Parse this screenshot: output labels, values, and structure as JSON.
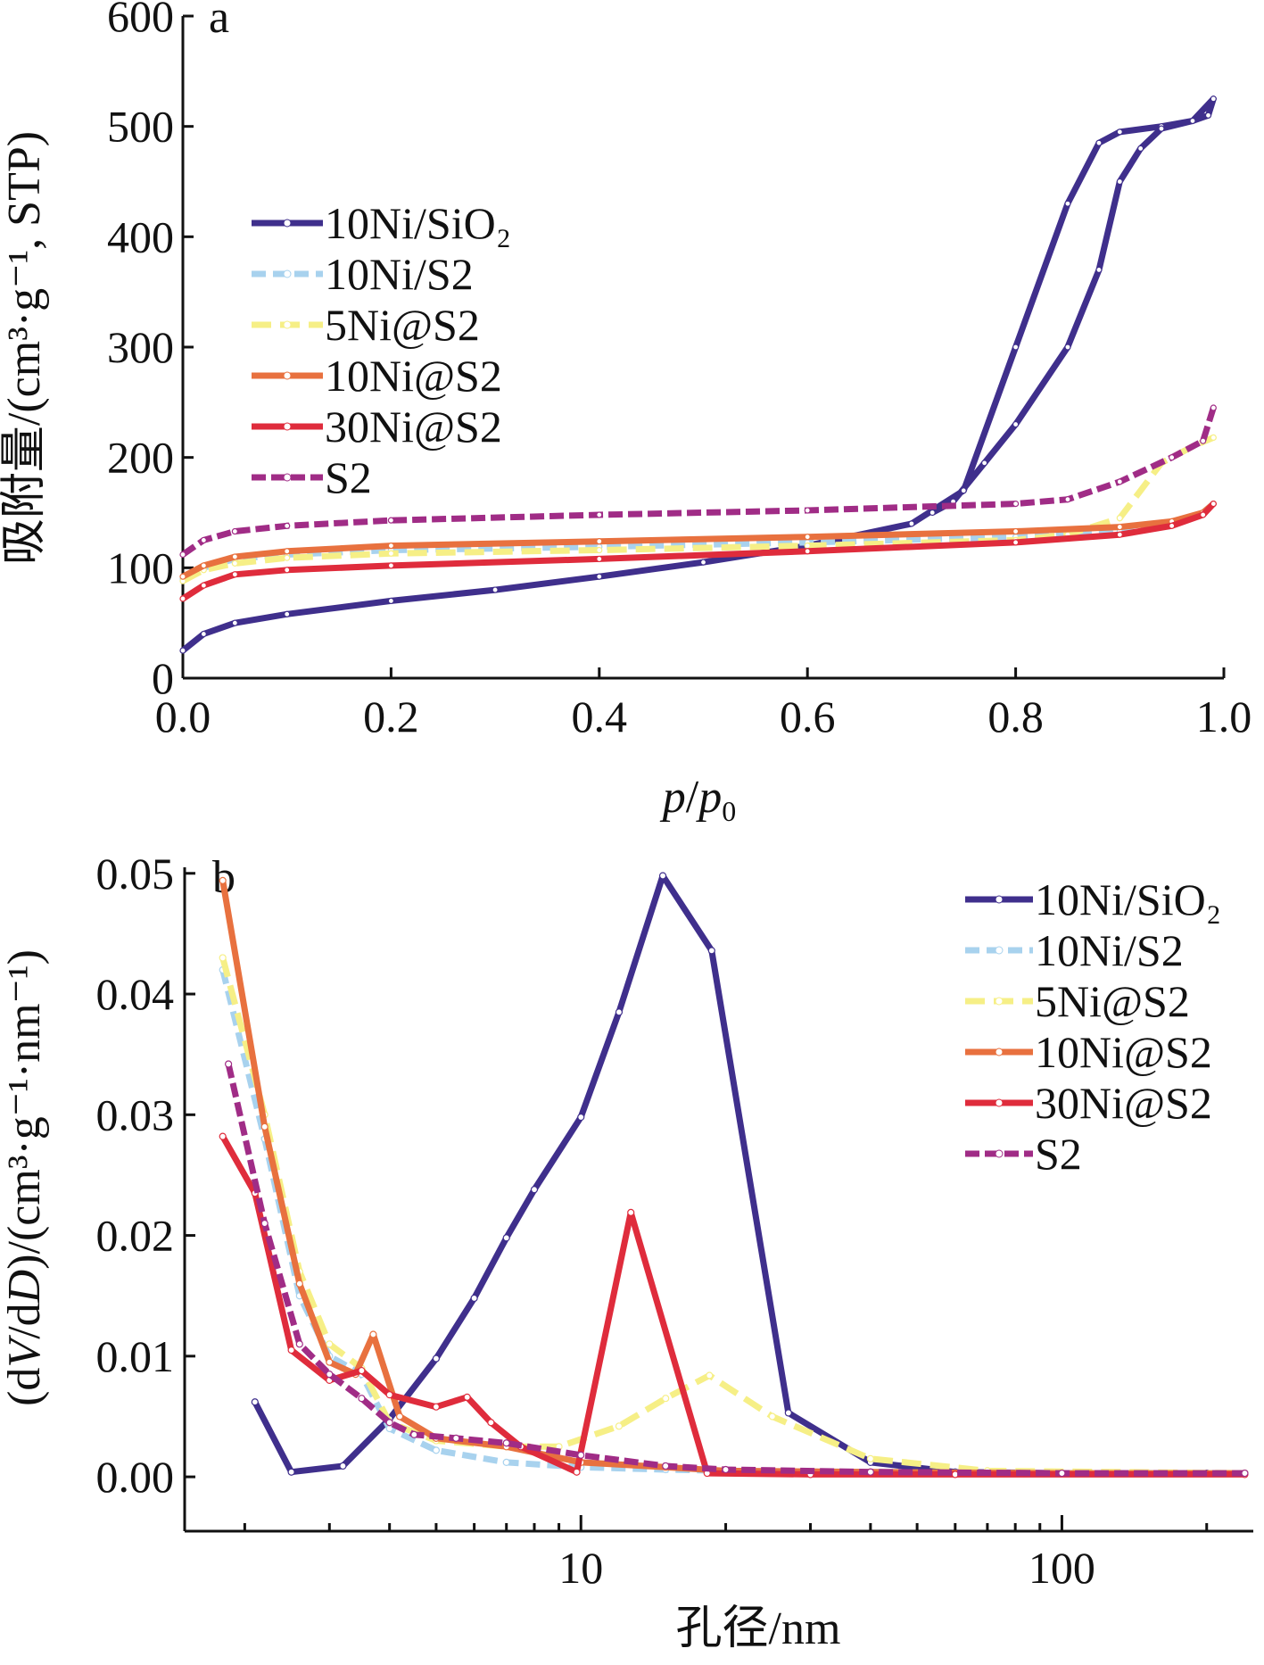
{
  "figure": {
    "note": ""
  },
  "chart_data": [
    {
      "panel": "a",
      "type": "line",
      "xlabel_parts": [
        "p",
        "/",
        "p",
        "0"
      ],
      "ylabel": "吸附量/(cm³·g⁻¹, STP)",
      "xlim": [
        0.0,
        1.0
      ],
      "ylim": [
        0,
        600
      ],
      "xticks": [
        "0.0",
        "0.2",
        "0.4",
        "0.6",
        "0.8",
        "1.0"
      ],
      "yticks": [
        "0",
        "100",
        "200",
        "300",
        "400",
        "500",
        "600"
      ],
      "legend_position": "left",
      "series": [
        {
          "name": "10Ni/SiO₂",
          "color": "#3f2f8c",
          "dash": "",
          "x": [
            0.0,
            0.02,
            0.05,
            0.1,
            0.2,
            0.3,
            0.4,
            0.5,
            0.6,
            0.7,
            0.75,
            0.8,
            0.85,
            0.88,
            0.9,
            0.94,
            0.97,
            0.99,
            0.985,
            0.97,
            0.94,
            0.92,
            0.9,
            0.88,
            0.85,
            0.8,
            0.77,
            0.74,
            0.72
          ],
          "y": [
            25,
            40,
            50,
            58,
            70,
            80,
            92,
            105,
            120,
            140,
            170,
            300,
            430,
            485,
            495,
            500,
            505,
            525,
            510,
            505,
            498,
            480,
            450,
            370,
            300,
            230,
            195,
            160,
            150
          ]
        },
        {
          "name": "10Ni/S2",
          "color": "#a8d2ee",
          "dash": "16 8",
          "x": [
            0.0,
            0.02,
            0.05,
            0.1,
            0.2,
            0.4,
            0.6,
            0.8,
            0.9,
            0.95,
            0.98,
            0.99
          ],
          "y": [
            90,
            100,
            108,
            112,
            116,
            119,
            123,
            128,
            133,
            140,
            150,
            158
          ]
        },
        {
          "name": "5Ni@S2",
          "color": "#f6ef86",
          "dash": "22 10",
          "x": [
            0.0,
            0.02,
            0.05,
            0.1,
            0.2,
            0.4,
            0.6,
            0.8,
            0.85,
            0.9,
            0.94,
            0.97,
            0.99
          ],
          "y": [
            88,
            98,
            104,
            109,
            113,
            116,
            120,
            125,
            130,
            145,
            195,
            210,
            218
          ]
        },
        {
          "name": "10Ni@S2",
          "color": "#e8713f",
          "dash": "",
          "x": [
            0.0,
            0.02,
            0.05,
            0.1,
            0.2,
            0.4,
            0.6,
            0.8,
            0.9,
            0.95,
            0.98,
            0.99
          ],
          "y": [
            92,
            102,
            110,
            115,
            120,
            124,
            128,
            133,
            137,
            142,
            150,
            158
          ]
        },
        {
          "name": "30Ni@S2",
          "color": "#df2c3c",
          "dash": "",
          "x": [
            0.0,
            0.02,
            0.05,
            0.1,
            0.2,
            0.4,
            0.6,
            0.8,
            0.9,
            0.95,
            0.98,
            0.99
          ],
          "y": [
            72,
            84,
            94,
            98,
            102,
            108,
            115,
            123,
            130,
            138,
            148,
            158
          ]
        },
        {
          "name": "S2",
          "color": "#a02c86",
          "dash": "16 6",
          "x": [
            0.0,
            0.02,
            0.05,
            0.1,
            0.2,
            0.4,
            0.6,
            0.8,
            0.85,
            0.9,
            0.95,
            0.98,
            0.99
          ],
          "y": [
            112,
            125,
            133,
            138,
            143,
            148,
            152,
            158,
            162,
            178,
            200,
            215,
            245
          ]
        }
      ]
    },
    {
      "panel": "b",
      "type": "line",
      "xlabel": "孔径/nm",
      "ylabel_parts": [
        "(d",
        "V",
        "/d",
        "D",
        ")/(cm³·g⁻¹·nm⁻¹)"
      ],
      "xscale": "log",
      "xlim": [
        1.5,
        250
      ],
      "ylim": [
        -0.0045,
        0.0505
      ],
      "xticks": [
        "10",
        "100"
      ],
      "yticks": [
        "0.00",
        "0.01",
        "0.02",
        "0.03",
        "0.04",
        "0.05"
      ],
      "legend_position": "top-right",
      "series": [
        {
          "name": "10Ni/SiO₂",
          "color": "#3f2f8c",
          "dash": "",
          "x": [
            2.1,
            2.5,
            3.2,
            4.0,
            5.0,
            6.0,
            7.0,
            8.0,
            10.0,
            12.0,
            14.8,
            18.7,
            27.0,
            40.0,
            60.0,
            100.0,
            200.0
          ],
          "y": [
            0.0062,
            0.0004,
            0.0009,
            0.0048,
            0.0098,
            0.0148,
            0.0198,
            0.0238,
            0.0298,
            0.0385,
            0.0498,
            0.0436,
            0.0053,
            0.0012,
            0.0004,
            0.0003,
            0.0003
          ]
        },
        {
          "name": "10Ni/S2",
          "color": "#a8d2ee",
          "dash": "16 8",
          "x": [
            1.8,
            2.2,
            2.6,
            3.0,
            3.5,
            4.0,
            5.0,
            7.0,
            10.0,
            15.0,
            20.0,
            40.0,
            100.0,
            240.0
          ],
          "y": [
            0.042,
            0.028,
            0.015,
            0.01,
            0.0085,
            0.004,
            0.0022,
            0.0012,
            0.0008,
            0.0006,
            0.0005,
            0.0004,
            0.0003,
            0.0003
          ]
        },
        {
          "name": "5Ni@S2",
          "color": "#f6ef86",
          "dash": "22 10",
          "x": [
            1.8,
            2.2,
            2.6,
            3.0,
            3.5,
            4.0,
            5.0,
            7.0,
            9.0,
            12.0,
            15.0,
            18.5,
            25.0,
            40.0,
            70.0,
            240.0
          ],
          "y": [
            0.043,
            0.03,
            0.017,
            0.011,
            0.009,
            0.0045,
            0.003,
            0.0025,
            0.0025,
            0.0042,
            0.0065,
            0.0084,
            0.005,
            0.0015,
            0.0005,
            0.0003
          ]
        },
        {
          "name": "10Ni@S2",
          "color": "#e8713f",
          "dash": "",
          "x": [
            1.8,
            2.2,
            2.6,
            3.0,
            3.4,
            3.7,
            4.2,
            5.0,
            7.0,
            10.0,
            15.0,
            20.0,
            40.0,
            100.0,
            240.0
          ],
          "y": [
            0.0494,
            0.029,
            0.016,
            0.0095,
            0.0085,
            0.0118,
            0.005,
            0.0032,
            0.0025,
            0.0012,
            0.0008,
            0.0005,
            0.0004,
            0.0003,
            0.0003
          ]
        },
        {
          "name": "30Ni@S2",
          "color": "#df2c3c",
          "dash": "",
          "x": [
            1.8,
            2.1,
            2.5,
            3.0,
            3.5,
            4.0,
            5.0,
            5.8,
            6.5,
            7.5,
            9.8,
            12.7,
            18.3,
            30.0,
            60.0,
            240.0
          ],
          "y": [
            0.0282,
            0.0235,
            0.0105,
            0.008,
            0.0088,
            0.0068,
            0.0058,
            0.0066,
            0.0045,
            0.0025,
            0.0004,
            0.0219,
            0.0003,
            0.0002,
            0.0002,
            0.0002
          ]
        },
        {
          "name": "S2",
          "color": "#a02c86",
          "dash": "16 6",
          "x": [
            1.85,
            2.2,
            2.6,
            3.0,
            3.5,
            4.0,
            4.5,
            5.5,
            7.0,
            10.0,
            15.0,
            20.0,
            40.0,
            100.0,
            240.0
          ],
          "y": [
            0.0342,
            0.021,
            0.011,
            0.0085,
            0.0065,
            0.0045,
            0.0035,
            0.0032,
            0.0028,
            0.0018,
            0.0009,
            0.0006,
            0.0004,
            0.0003,
            0.0003
          ]
        }
      ]
    }
  ]
}
